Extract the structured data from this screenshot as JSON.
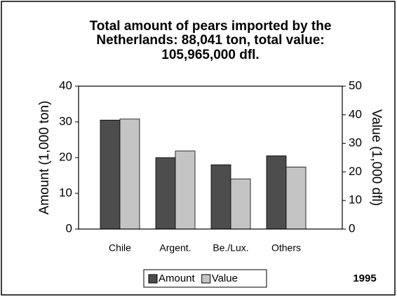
{
  "chart_data": {
    "type": "bar",
    "title": [
      "Total amount of pears imported by the",
      "Netherlands: 88,041 ton, total value:",
      "105,965,000 dfl."
    ],
    "categories": [
      "Chile",
      "Argent.",
      "Be./Lux.",
      "Others"
    ],
    "series": [
      {
        "name": "Amount",
        "color": "#4d4d4d",
        "values": [
          30.5,
          20,
          18,
          20.5
        ]
      },
      {
        "name": "Value",
        "color": "#c4c4c4",
        "axis": "y2",
        "values": [
          38.5,
          27.3,
          17.5,
          21.7
        ]
      }
    ],
    "ylabel": "Amount (1,000 ton)",
    "y2label": "Value (1,000 dfl)",
    "ylim": [
      0,
      40
    ],
    "yticks": [
      0,
      10,
      20,
      30,
      40
    ],
    "y2lim": [
      0,
      50
    ],
    "y2ticks": [
      0,
      10,
      20,
      30,
      40,
      50
    ],
    "annotation": "1995"
  }
}
